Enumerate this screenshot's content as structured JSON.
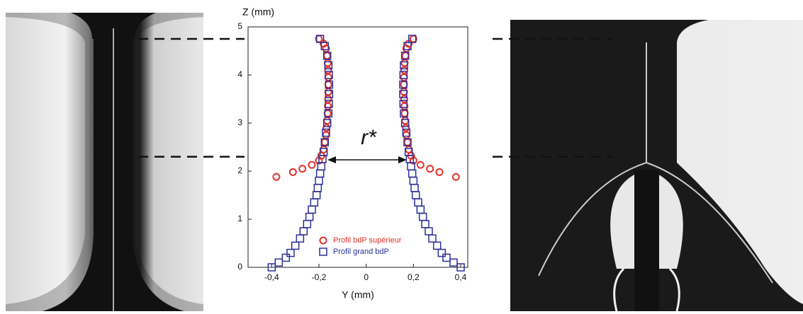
{
  "chart_data": {
    "type": "scatter",
    "xlabel": "Y (mm)",
    "ylabel": "Z (mm)",
    "annotation": "r*",
    "xlim": [
      -0.5,
      0.43
    ],
    "ylim": [
      0,
      5
    ],
    "xticks": [
      {
        "value": -0.4,
        "label": "-0,4"
      },
      {
        "value": -0.2,
        "label": "-0,2"
      },
      0,
      {
        "value": 0.2,
        "label": "0,2"
      },
      {
        "value": 0.4,
        "label": "0,4"
      }
    ],
    "yticks": [
      0,
      1,
      2,
      3,
      4,
      5
    ],
    "legend": "lower center",
    "hlines": [
      4.75,
      2.3
    ],
    "series": [
      {
        "name": "Profil bdP supérieur",
        "color": "#e0312b",
        "marker": "circle",
        "x": [
          -0.38,
          -0.31,
          -0.27,
          -0.23,
          -0.2,
          -0.19,
          -0.18,
          -0.175,
          -0.17,
          -0.168,
          -0.165,
          -0.163,
          -0.162,
          -0.161,
          -0.16,
          -0.16,
          -0.16,
          -0.161,
          -0.163,
          -0.166,
          -0.17,
          -0.18,
          -0.2,
          0.38,
          0.31,
          0.27,
          0.23,
          0.2,
          0.19,
          0.18,
          0.175,
          0.17,
          0.168,
          0.165,
          0.163,
          0.162,
          0.161,
          0.16,
          0.16,
          0.16,
          0.161,
          0.163,
          0.166,
          0.17,
          0.18,
          0.2
        ],
        "values": [
          1.88,
          1.98,
          2.05,
          2.13,
          2.22,
          2.32,
          2.45,
          2.6,
          2.75,
          2.9,
          3.05,
          3.2,
          3.35,
          3.5,
          3.65,
          3.8,
          3.95,
          4.1,
          4.25,
          4.4,
          4.55,
          4.65,
          4.75,
          1.88,
          1.98,
          2.05,
          2.13,
          2.22,
          2.32,
          2.45,
          2.6,
          2.75,
          2.9,
          3.05,
          3.2,
          3.35,
          3.5,
          3.65,
          3.8,
          3.95,
          4.1,
          4.25,
          4.4,
          4.55,
          4.65,
          4.75
        ]
      },
      {
        "name": "Profil grand bdP",
        "color": "#2a2f9a",
        "marker": "square",
        "x": [
          -0.4,
          -0.37,
          -0.34,
          -0.32,
          -0.3,
          -0.28,
          -0.265,
          -0.25,
          -0.24,
          -0.23,
          -0.22,
          -0.21,
          -0.205,
          -0.2,
          -0.195,
          -0.19,
          -0.185,
          -0.18,
          -0.175,
          -0.17,
          -0.165,
          -0.16,
          -0.158,
          -0.157,
          -0.157,
          -0.158,
          -0.16,
          -0.165,
          -0.175,
          -0.195,
          0.4,
          0.37,
          0.34,
          0.32,
          0.3,
          0.28,
          0.265,
          0.25,
          0.24,
          0.23,
          0.22,
          0.21,
          0.205,
          0.2,
          0.195,
          0.19,
          0.185,
          0.18,
          0.175,
          0.17,
          0.165,
          0.16,
          0.158,
          0.157,
          0.157,
          0.158,
          0.16,
          0.165,
          0.175,
          0.195
        ],
        "values": [
          0,
          0.1,
          0.2,
          0.3,
          0.45,
          0.6,
          0.75,
          0.9,
          1.05,
          1.2,
          1.35,
          1.5,
          1.65,
          1.8,
          1.95,
          2.1,
          2.25,
          2.4,
          2.6,
          2.8,
          3.0,
          3.2,
          3.4,
          3.6,
          3.8,
          4.0,
          4.2,
          4.4,
          4.6,
          4.75,
          0,
          0.1,
          0.2,
          0.3,
          0.45,
          0.6,
          0.75,
          0.9,
          1.05,
          1.2,
          1.35,
          1.5,
          1.65,
          1.8,
          1.95,
          2.1,
          2.25,
          2.4,
          2.6,
          2.8,
          3.0,
          3.2,
          3.4,
          3.6,
          3.8,
          4.0,
          4.2,
          4.4,
          4.6,
          4.75
        ]
      }
    ]
  }
}
